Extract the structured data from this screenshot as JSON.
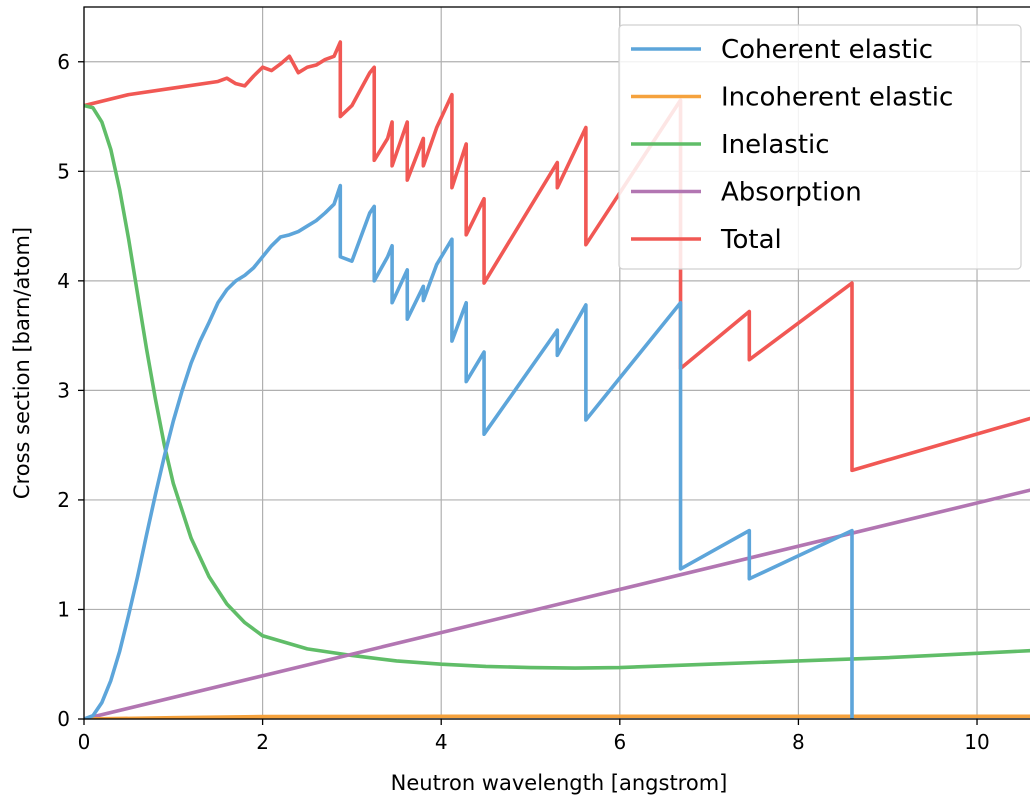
{
  "chart_data": {
    "type": "line",
    "title": "",
    "xlabel": "Neutron wavelength [angstrom]",
    "ylabel": "Cross section [barn/atom]",
    "xlim": [
      0,
      10.75
    ],
    "ylim": [
      0,
      6.5
    ],
    "xticks": [
      0,
      2,
      4,
      6,
      8,
      10
    ],
    "yticks": [
      0,
      1,
      2,
      3,
      4,
      5,
      6
    ],
    "grid": true,
    "legend_position": "top-right",
    "series": [
      {
        "name": "Coherent elastic",
        "color": "#5da5da",
        "x": [
          0,
          0.1,
          0.2,
          0.3,
          0.4,
          0.5,
          0.6,
          0.7,
          0.8,
          0.9,
          1.0,
          1.1,
          1.2,
          1.3,
          1.4,
          1.5,
          1.6,
          1.7,
          1.8,
          1.9,
          2.0,
          2.1,
          2.2,
          2.3,
          2.4,
          2.5,
          2.6,
          2.7,
          2.8,
          2.87,
          2.87,
          3.0,
          3.1,
          3.2,
          3.25,
          3.25,
          3.4,
          3.45,
          3.45,
          3.62,
          3.62,
          3.8,
          3.8,
          3.95,
          4.12,
          4.12,
          4.28,
          4.28,
          4.48,
          4.48,
          5.3,
          5.3,
          5.62,
          5.62,
          6.68,
          6.68,
          7.45,
          7.45,
          8.6,
          8.6
        ],
        "y": [
          0,
          0.03,
          0.15,
          0.35,
          0.62,
          0.95,
          1.3,
          1.68,
          2.05,
          2.4,
          2.72,
          3.0,
          3.25,
          3.45,
          3.62,
          3.8,
          3.92,
          4.0,
          4.05,
          4.12,
          4.22,
          4.32,
          4.4,
          4.42,
          4.45,
          4.5,
          4.55,
          4.62,
          4.7,
          4.87,
          4.22,
          4.18,
          4.4,
          4.62,
          4.68,
          4.0,
          4.22,
          4.32,
          3.8,
          4.1,
          3.65,
          3.95,
          3.82,
          4.15,
          4.38,
          3.45,
          3.8,
          3.08,
          3.35,
          2.6,
          3.55,
          3.32,
          3.78,
          2.73,
          3.8,
          1.37,
          1.72,
          1.28,
          1.72,
          0
        ]
      },
      {
        "name": "Incoherent elastic",
        "color": "#f5a23d",
        "x": [
          0,
          1,
          2,
          4,
          6,
          8,
          10.75
        ],
        "y": [
          0,
          0.012,
          0.022,
          0.025,
          0.025,
          0.025,
          0.025
        ]
      },
      {
        "name": "Inelastic",
        "color": "#60bd68",
        "x": [
          0,
          0.1,
          0.2,
          0.3,
          0.4,
          0.5,
          0.6,
          0.7,
          0.8,
          0.9,
          1.0,
          1.2,
          1.4,
          1.6,
          1.8,
          2.0,
          2.5,
          3.0,
          3.5,
          4.0,
          4.5,
          5.0,
          5.5,
          6.0,
          7.0,
          8.0,
          9.0,
          10.0,
          10.75
        ],
        "y": [
          5.6,
          5.58,
          5.45,
          5.2,
          4.83,
          4.38,
          3.88,
          3.38,
          2.92,
          2.5,
          2.15,
          1.65,
          1.3,
          1.05,
          0.88,
          0.76,
          0.64,
          0.58,
          0.53,
          0.5,
          0.48,
          0.47,
          0.465,
          0.47,
          0.5,
          0.53,
          0.56,
          0.6,
          0.63
        ]
      },
      {
        "name": "Absorption",
        "color": "#b276b2",
        "x": [
          0,
          10.75
        ],
        "y": [
          0,
          2.12
        ]
      },
      {
        "name": "Total",
        "color": "#f15854",
        "x": [
          0,
          0.5,
          1.0,
          1.5,
          1.6,
          1.7,
          1.8,
          1.9,
          2.0,
          2.1,
          2.2,
          2.3,
          2.4,
          2.5,
          2.6,
          2.7,
          2.8,
          2.87,
          2.87,
          3.0,
          3.1,
          3.2,
          3.25,
          3.25,
          3.4,
          3.45,
          3.45,
          3.62,
          3.62,
          3.8,
          3.8,
          3.95,
          4.12,
          4.12,
          4.28,
          4.28,
          4.48,
          4.48,
          5.3,
          5.3,
          5.62,
          5.62,
          6.68,
          6.68,
          7.45,
          7.45,
          8.6,
          8.6,
          10.75
        ],
        "y": [
          5.6,
          5.7,
          5.76,
          5.82,
          5.85,
          5.8,
          5.78,
          5.87,
          5.95,
          5.92,
          5.98,
          6.05,
          5.9,
          5.95,
          5.97,
          6.02,
          6.05,
          6.18,
          5.5,
          5.6,
          5.75,
          5.9,
          5.95,
          5.1,
          5.3,
          5.45,
          5.05,
          5.45,
          4.92,
          5.3,
          5.05,
          5.4,
          5.7,
          4.85,
          5.25,
          4.42,
          4.75,
          3.98,
          5.08,
          4.85,
          5.4,
          4.33,
          5.65,
          3.2,
          3.72,
          3.28,
          3.98,
          2.27,
          2.78
        ]
      }
    ]
  }
}
